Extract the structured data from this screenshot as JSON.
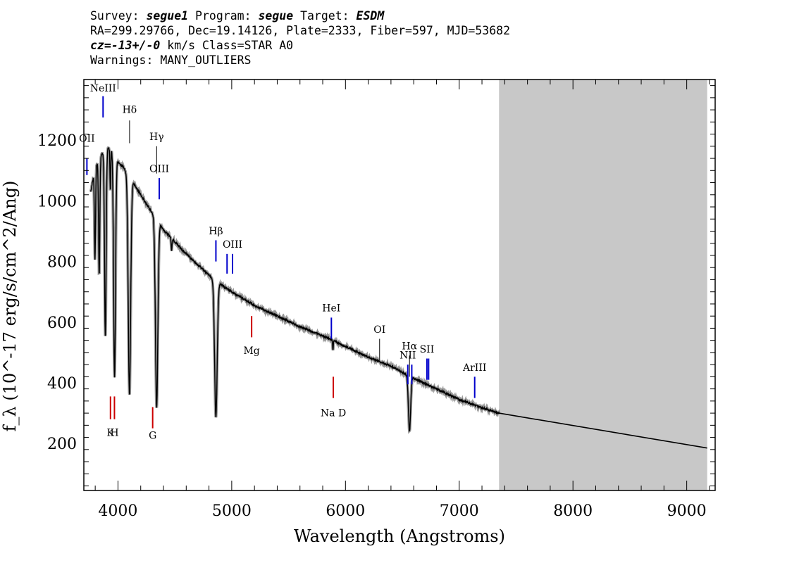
{
  "header": {
    "survey_label": "Survey:",
    "survey": "segue1",
    "program_label": "Program:",
    "program": "segue",
    "target_label": "Target:",
    "target": "ESDM",
    "coords": "RA=299.29766, Dec=19.14126, Plate=2333, Fiber=597, MJD=53682",
    "cz_label": "cz=",
    "cz_value": "-13+/-0",
    "cz_rest": " km/s Class=STAR A0",
    "warnings": "Warnings: MANY_OUTLIERS"
  },
  "chart_data": {
    "type": "line",
    "xlabel": "Wavelength (Angstroms)",
    "ylabel": "f_λ (10^-17 erg/s/cm^2/Ang)",
    "xlim": [
      3700,
      9250
    ],
    "ylim": [
      45,
      1400
    ],
    "x_ticks": [
      4000,
      5000,
      6000,
      7000,
      8000,
      9000
    ],
    "y_ticks": [
      200,
      400,
      600,
      800,
      1000,
      1200
    ],
    "masked_region": [
      7350,
      9180
    ],
    "spectrum": {
      "continuum": [
        [
          3760,
          1030
        ],
        [
          3800,
          1110
        ],
        [
          3850,
          1150
        ],
        [
          3900,
          1175
        ],
        [
          3960,
          1170
        ],
        [
          4000,
          1130
        ],
        [
          4050,
          1110
        ],
        [
          4100,
          1080
        ],
        [
          4150,
          1050
        ],
        [
          4200,
          1020
        ],
        [
          4250,
          990
        ],
        [
          4300,
          960
        ],
        [
          4350,
          935
        ],
        [
          4400,
          905
        ],
        [
          4450,
          885
        ],
        [
          4500,
          865
        ],
        [
          4550,
          845
        ],
        [
          4600,
          825
        ],
        [
          4700,
          790
        ],
        [
          4800,
          755
        ],
        [
          4900,
          725
        ],
        [
          5000,
          700
        ],
        [
          5200,
          655
        ],
        [
          5400,
          620
        ],
        [
          5600,
          585
        ],
        [
          5800,
          555
        ],
        [
          6000,
          520
        ],
        [
          6200,
          485
        ],
        [
          6400,
          455
        ],
        [
          6600,
          415
        ],
        [
          6800,
          380
        ],
        [
          7000,
          345
        ],
        [
          7200,
          318
        ],
        [
          7350,
          300
        ]
      ],
      "absorption_lines": [
        {
          "center": 3798,
          "depth": 300,
          "width": 7
        },
        {
          "center": 3835,
          "depth": 380,
          "width": 8
        },
        {
          "center": 3889,
          "depth": 620,
          "width": 10
        },
        {
          "center": 3933,
          "depth": 140,
          "width": 5
        },
        {
          "center": 3970,
          "depth": 740,
          "width": 12
        },
        {
          "center": 4101,
          "depth": 720,
          "width": 15
        },
        {
          "center": 4340,
          "depth": 620,
          "width": 15
        },
        {
          "center": 4471,
          "depth": 40,
          "width": 5
        },
        {
          "center": 4861,
          "depth": 450,
          "width": 16
        },
        {
          "center": 5890,
          "depth": 30,
          "width": 4
        },
        {
          "center": 6563,
          "depth": 180,
          "width": 14
        }
      ],
      "extension": [
        [
          7350,
          300
        ],
        [
          9180,
          185
        ]
      ]
    },
    "line_markers": [
      {
        "label": "OII",
        "x": 3727,
        "color": "#0000cc",
        "y1": 1085,
        "y2": 1140,
        "ly": 1195,
        "clip": true
      },
      {
        "label": "NeIII",
        "x": 3869,
        "color": "#0000cc",
        "y1": 1275,
        "y2": 1345,
        "ly": 1360
      },
      {
        "label": "Hδ",
        "x": 4102,
        "color": "#000000",
        "y1": 1265,
        "y2": 1190,
        "ly": 1290
      },
      {
        "label": "Hγ",
        "x": 4340,
        "color": "#000000",
        "y1": 1180,
        "y2": 1090,
        "ly": 1200
      },
      {
        "label": "OIII",
        "x": 4363,
        "color": "#0000cc",
        "y1": 1075,
        "y2": 1005,
        "ly": 1095
      },
      {
        "label": "Hβ",
        "x": 4861,
        "color": "#0000cc",
        "y1": 870,
        "y2": 800,
        "ly": 890
      },
      {
        "label": "OIII",
        "x": 4959,
        "color": "#0000cc",
        "y1": 825,
        "y2": 760,
        "ly": 845,
        "no_label": true
      },
      {
        "label": "OIII",
        "x": 5007,
        "color": "#0000cc",
        "y1": 825,
        "y2": 760,
        "ly": 845
      },
      {
        "label": "Mg",
        "x": 5175,
        "color": "#cc0000",
        "y1": 620,
        "y2": 550,
        "ly": 495,
        "below": true
      },
      {
        "label": "HeI",
        "x": 5876,
        "color": "#0000cc",
        "y1": 615,
        "y2": 545,
        "ly": 635
      },
      {
        "label": "Na D",
        "x": 5893,
        "color": "#cc0000",
        "y1": 420,
        "y2": 350,
        "ly": 290,
        "below": true
      },
      {
        "label": "OI",
        "x": 6300,
        "color": "#000000",
        "y1": 545,
        "y2": 475,
        "ly": 565
      },
      {
        "label": "NII",
        "x": 6548,
        "color": "#0000cc",
        "y1": 460,
        "y2": 395,
        "ly": 480
      },
      {
        "label": "Hα",
        "x": 6563,
        "color": "#000000",
        "y1": 490,
        "y2": 420,
        "ly": 510
      },
      {
        "label": "NII",
        "x": 6583,
        "color": "#0000cc",
        "y1": 460,
        "y2": 395,
        "ly": 470,
        "no_label": true
      },
      {
        "label": "SII",
        "x": 6716,
        "color": "#0000cc",
        "y1": 480,
        "y2": 410,
        "ly": 500
      },
      {
        "label": "SII",
        "x": 6731,
        "color": "#0000cc",
        "y1": 480,
        "y2": 410,
        "ly": 500,
        "no_label": true
      },
      {
        "label": "ArIII",
        "x": 7136,
        "color": "#0000cc",
        "y1": 420,
        "y2": 350,
        "ly": 440
      },
      {
        "label": "K",
        "x": 3934,
        "color": "#cc0000",
        "y1": 355,
        "y2": 280,
        "ly": 225,
        "below": true
      },
      {
        "label": "H",
        "x": 3969,
        "color": "#cc0000",
        "y1": 355,
        "y2": 280,
        "ly": 225,
        "below": true
      },
      {
        "label": "G",
        "x": 4305,
        "color": "#cc0000",
        "y1": 320,
        "y2": 250,
        "ly": 215,
        "below": true
      }
    ]
  }
}
